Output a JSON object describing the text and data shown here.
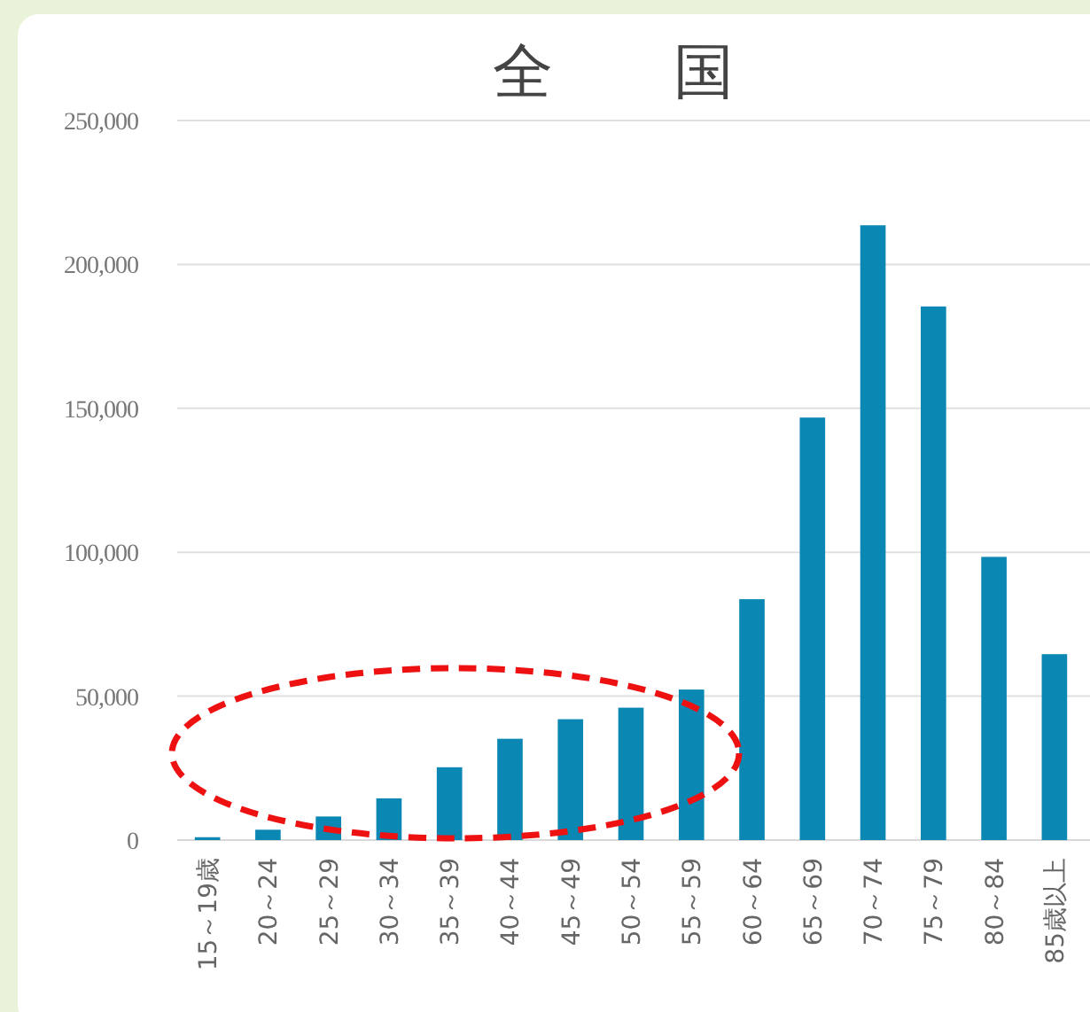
{
  "chart_data": {
    "type": "bar",
    "title": "全　　国",
    "categories": [
      "15～19歳",
      "20～24",
      "25～29",
      "30～34",
      "35～39",
      "40～44",
      "45～49",
      "50～54",
      "55～59",
      "60～64",
      "65～69",
      "70～74",
      "75～79",
      "80～84",
      "85歳以上"
    ],
    "values": [
      1000,
      3600,
      8200,
      14500,
      25300,
      35200,
      42000,
      46000,
      52300,
      83700,
      146800,
      213600,
      185400,
      98400,
      64600
    ],
    "color": "#0b87b3",
    "ylim": [
      0,
      250000
    ],
    "yticks": [
      {
        "value": 0,
        "label": "0"
      },
      {
        "value": 50000,
        "label": "50,000"
      },
      {
        "value": 100000,
        "label": "100,000"
      },
      {
        "value": 150000,
        "label": "150,000"
      },
      {
        "value": 200000,
        "label": "200,000"
      },
      {
        "value": 250000,
        "label": "250,000"
      }
    ],
    "grid": "y"
  }
}
